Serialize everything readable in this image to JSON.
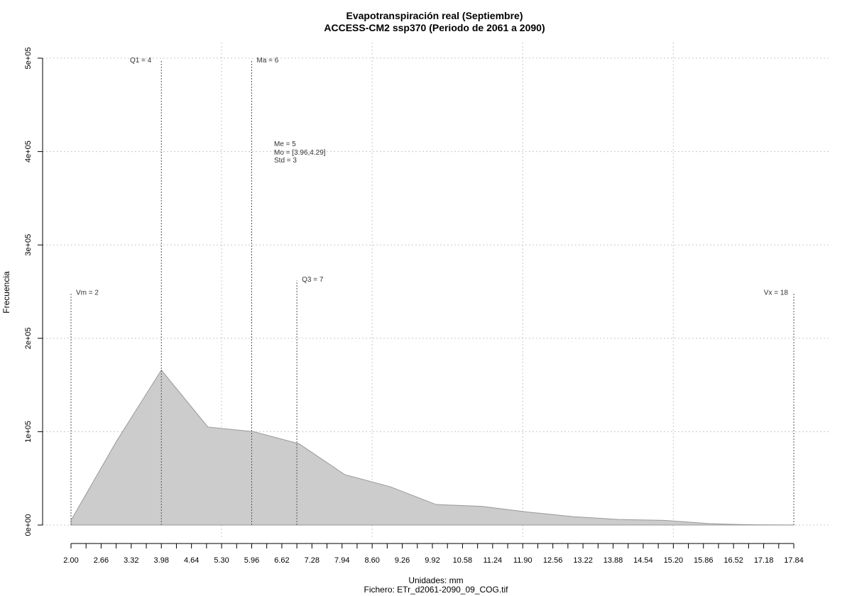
{
  "chart_data": {
    "type": "area",
    "title": "Evapotranspiración real (Septiembre)",
    "subtitle": "ACCESS-CM2 ssp370 (Periodo de 2061 a 2090)",
    "xlabel": "Unidades: mm",
    "xlabel2": "Fichero: ETr_d2061-2090_09_COG.tif",
    "ylabel": "Frecuencia",
    "xlim": [
      2.0,
      17.84
    ],
    "ylim": [
      0,
      500000
    ],
    "x_ticks": [
      "2.00",
      "2.66",
      "3.32",
      "3.98",
      "4.64",
      "5.30",
      "5.96",
      "6.62",
      "7.28",
      "7.94",
      "8.60",
      "9.26",
      "9.92",
      "10.58",
      "11.24",
      "11.90",
      "12.56",
      "13.22",
      "13.88",
      "14.54",
      "15.20",
      "15.86",
      "16.52",
      "17.18",
      "17.84"
    ],
    "y_ticks": [
      {
        "value": 0,
        "label": "0e+00"
      },
      {
        "value": 100000,
        "label": "1e+05"
      },
      {
        "value": 200000,
        "label": "2e+05"
      },
      {
        "value": 300000,
        "label": "3e+05"
      },
      {
        "value": 400000,
        "label": "4e+05"
      },
      {
        "value": 500000,
        "label": "5e+05"
      }
    ],
    "grid": true,
    "fill_color": "#cccccc",
    "line_color": "#999999",
    "x": [
      2.0,
      3.0,
      3.98,
      5.0,
      6.0,
      7.0,
      8.0,
      9.0,
      10.0,
      11.0,
      12.0,
      13.0,
      14.0,
      15.0,
      16.0,
      16.5,
      17.0,
      17.84
    ],
    "y": [
      5000,
      90000,
      166000,
      105000,
      100000,
      87000,
      54000,
      41000,
      22000,
      20000,
      14000,
      9000,
      6000,
      5000,
      1500,
      800,
      300,
      100
    ],
    "markers": [
      {
        "label": "Vm = 2",
        "x": 2.0,
        "y_top": 248000
      },
      {
        "label": "Q1 = 4",
        "x": 3.98,
        "y_top": 497000
      },
      {
        "label": "Ma = 6",
        "x": 5.96,
        "y_top": 497000
      },
      {
        "label": "Q3 = 7",
        "x": 6.95,
        "y_top": 262000
      },
      {
        "label": "Vx = 18",
        "x": 17.84,
        "y_top": 248000
      }
    ],
    "stats": [
      "Me = 5",
      "Mo = [3.96,4.29]",
      "Std = 3"
    ]
  }
}
